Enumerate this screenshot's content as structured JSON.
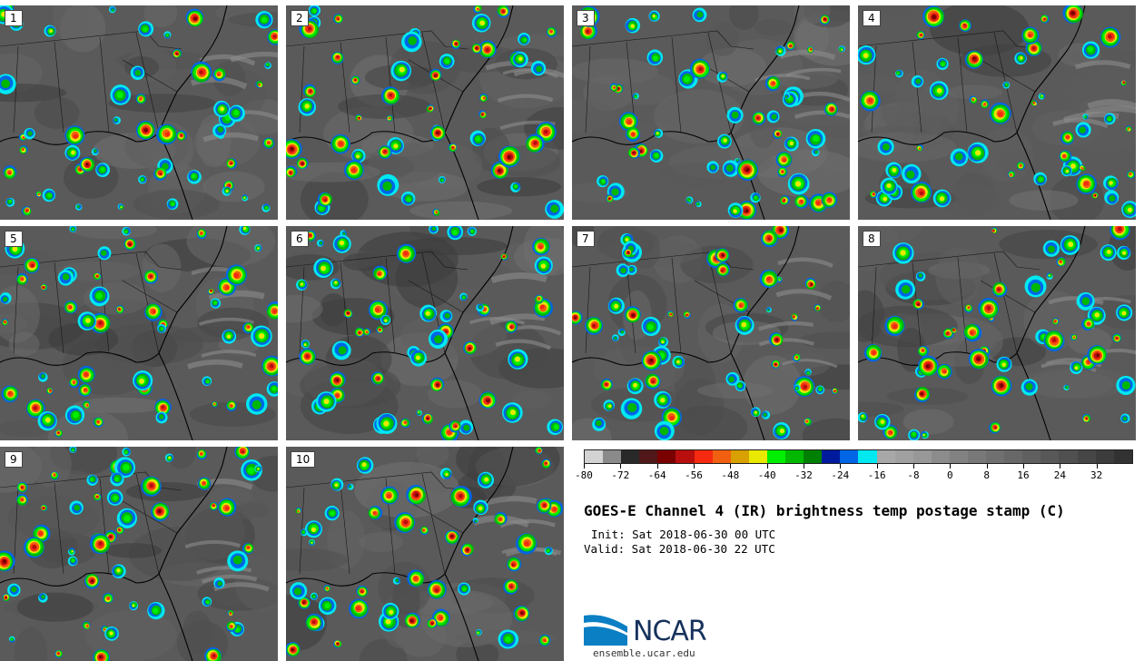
{
  "panels": [
    {
      "label": "1",
      "seed": 11
    },
    {
      "label": "2",
      "seed": 23
    },
    {
      "label": "3",
      "seed": 37
    },
    {
      "label": "4",
      "seed": 41
    },
    {
      "label": "5",
      "seed": 53
    },
    {
      "label": "6",
      "seed": 67
    },
    {
      "label": "7",
      "seed": 71
    },
    {
      "label": "8",
      "seed": 83
    },
    {
      "label": "9",
      "seed": 97
    },
    {
      "label": "10",
      "seed": 103
    }
  ],
  "colorbar": {
    "colors": [
      "#d3d3d3",
      "#8a8a8a",
      "#282828",
      "#501818",
      "#7a0000",
      "#b80e0e",
      "#f52a10",
      "#f06010",
      "#d8a000",
      "#e8e800",
      "#00ee00",
      "#00b800",
      "#008000",
      "#001a9e",
      "#0066e6",
      "#00e8f0",
      "#a8a8a8",
      "#a0a0a0",
      "#989898",
      "#8c8c8c",
      "#828282",
      "#787878",
      "#707070",
      "#686868",
      "#606060",
      "#585858",
      "#505050",
      "#464646",
      "#3c3c3c",
      "#323232"
    ],
    "ticks": [
      "-80",
      "-72",
      "-64",
      "-56",
      "-48",
      "-40",
      "-32",
      "-24",
      "-16",
      "-8",
      "0",
      "8",
      "16",
      "24",
      "32"
    ]
  },
  "title": "GOES-E Channel 4 (IR) brightness temp postage stamp (C)",
  "init": "Init: Sat 2018-06-30 00 UTC",
  "valid": "Valid: Sat 2018-06-30 22 UTC",
  "logo": {
    "text": "NCAR",
    "url": "ensemble.ucar.edu"
  }
}
